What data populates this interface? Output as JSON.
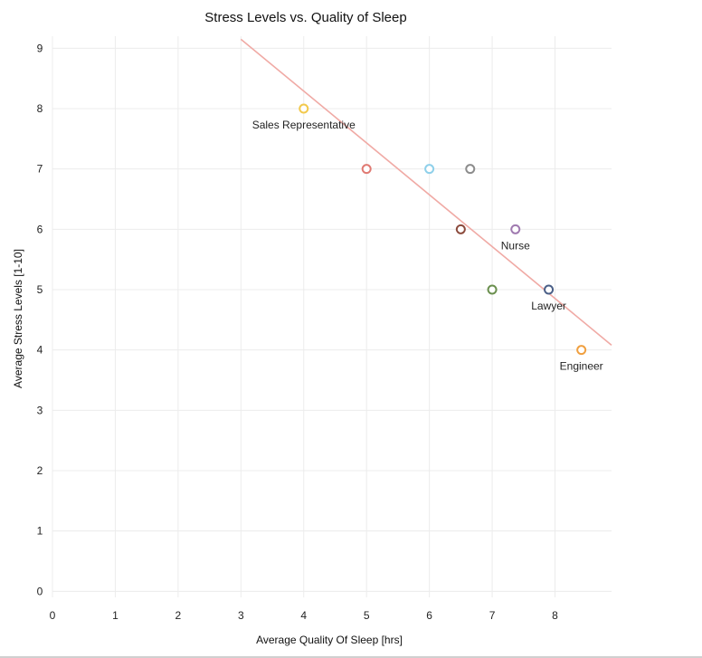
{
  "chart_data": {
    "type": "scatter",
    "title": "Stress Levels vs. Quality of Sleep",
    "xlabel": "Average Quality Of Sleep [hrs]",
    "ylabel": "Average Stress Levels [1-10]",
    "xlim": [
      0,
      8.9
    ],
    "ylim": [
      -0.1,
      9.2
    ],
    "xticks": [
      "0",
      "1",
      "2",
      "3",
      "4",
      "5",
      "6",
      "7",
      "8"
    ],
    "yticks": [
      "0",
      "1",
      "2",
      "3",
      "4",
      "5",
      "6",
      "7",
      "8",
      "9"
    ],
    "grid": true,
    "points": [
      {
        "x": 4.0,
        "y": 8,
        "color": "#f2c94c",
        "label": "Sales Representative"
      },
      {
        "x": 5.0,
        "y": 7,
        "color": "#e07a73",
        "label": ""
      },
      {
        "x": 6.0,
        "y": 7,
        "color": "#8fd0ea",
        "label": ""
      },
      {
        "x": 6.65,
        "y": 7,
        "color": "#8c8c8c",
        "label": ""
      },
      {
        "x": 6.5,
        "y": 6,
        "color": "#8b4a3c",
        "label": ""
      },
      {
        "x": 7.37,
        "y": 6,
        "color": "#a07ab0",
        "label": "Nurse"
      },
      {
        "x": 7.0,
        "y": 5,
        "color": "#6a8f4e",
        "label": ""
      },
      {
        "x": 7.9,
        "y": 5,
        "color": "#4a5f87",
        "label": "Lawyer"
      },
      {
        "x": 8.42,
        "y": 4,
        "color": "#f0a040",
        "label": "Engineer"
      }
    ],
    "trendline": {
      "color": "#f0aaa5",
      "x": [
        3.0,
        8.9
      ],
      "y": [
        9.15,
        4.08
      ]
    }
  }
}
